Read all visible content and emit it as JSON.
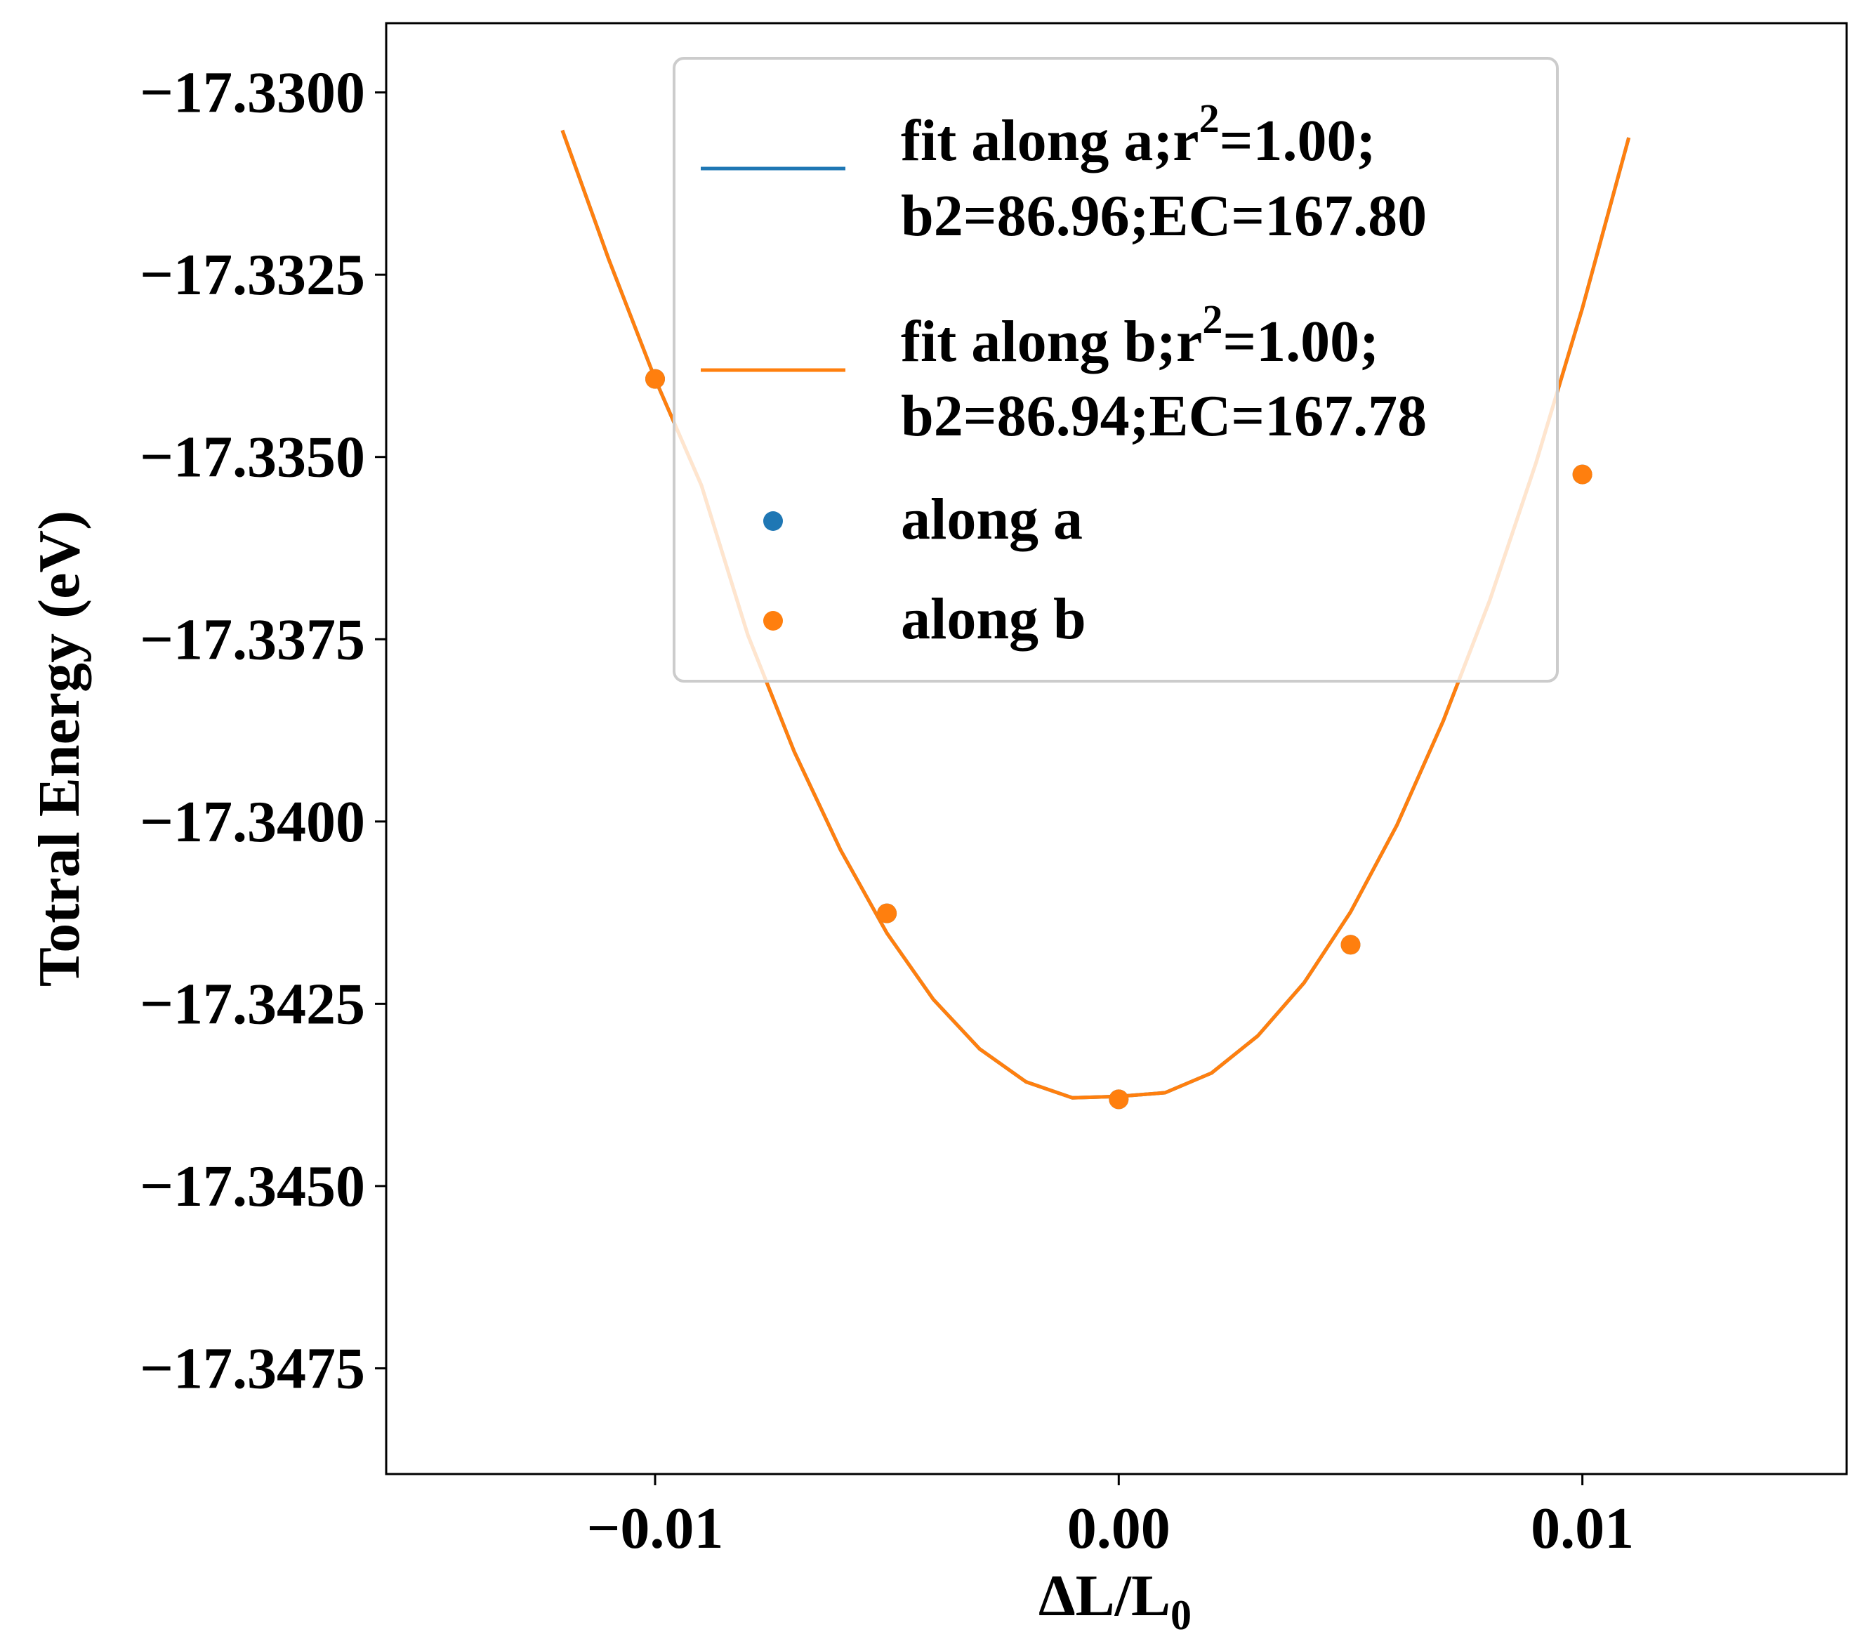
{
  "chart_data": {
    "type": "line",
    "xlabel_main": "ΔL/L",
    "xlabel_sub": "0",
    "ylabel": "Totral Energy (eV)",
    "xlim": [
      -0.0158,
      0.0157
    ],
    "ylim": [
      -17.34895,
      -17.32905
    ],
    "xticks": [
      -0.01,
      0.0,
      0.01
    ],
    "xtick_labels": [
      "−0.01",
      "0.00",
      "0.01"
    ],
    "yticks": [
      -17.33,
      -17.3325,
      -17.335,
      -17.3375,
      -17.34,
      -17.3425,
      -17.345,
      -17.3475
    ],
    "ytick_labels": [
      "−17.3300",
      "−17.3325",
      "−17.3350",
      "−17.3375",
      "−17.3400",
      "−17.3425",
      "−17.3450",
      "−17.3475"
    ],
    "colors": {
      "a": "#1f77b4",
      "b": "#ff7f0e"
    },
    "fit_x": [
      -0.012,
      -0.011,
      -0.01,
      -0.009,
      -0.008,
      -0.007,
      -0.006,
      -0.005,
      -0.004,
      -0.003,
      -0.002,
      -0.001,
      0.0,
      0.001,
      0.002,
      0.003,
      0.004,
      0.005,
      0.006,
      0.007,
      0.008,
      0.009,
      0.01,
      0.011
    ],
    "series": [
      {
        "key": "fit_a",
        "kind": "line",
        "color": "#1f77b4",
        "legend": [
          "fit along a;r",
          "2",
          "=1.00;",
          "b2=86.96;EC=167.80"
        ],
        "y": [
          -17.33052,
          -17.33229,
          -17.33393,
          -17.33539,
          -17.33744,
          -17.33904,
          -17.34039,
          -17.34153,
          -17.34244,
          -17.34312,
          -17.34357,
          -17.34379,
          -17.34377,
          -17.34372,
          -17.34345,
          -17.34294,
          -17.34221,
          -17.34124,
          -17.34005,
          -17.33862,
          -17.33697,
          -17.33508,
          -17.33296,
          -17.33062
        ]
      },
      {
        "key": "fit_b",
        "kind": "line",
        "color": "#ff7f0e",
        "legend": [
          "fit along b;r",
          "2",
          "=1.00;",
          "b2=86.94;EC=167.78"
        ],
        "y": [
          -17.33052,
          -17.33229,
          -17.33393,
          -17.33539,
          -17.33744,
          -17.33904,
          -17.34039,
          -17.34153,
          -17.34244,
          -17.34312,
          -17.34357,
          -17.34379,
          -17.34377,
          -17.34372,
          -17.34345,
          -17.34294,
          -17.34221,
          -17.34124,
          -17.34005,
          -17.33862,
          -17.33697,
          -17.33508,
          -17.33296,
          -17.33062
        ]
      },
      {
        "key": "pts_a",
        "kind": "scatter",
        "color": "#1f77b4",
        "legend_label": "along a",
        "x": [
          -0.01,
          -0.005,
          0.0,
          0.005,
          0.01
        ],
        "y": [
          -17.33393,
          -17.34126,
          -17.34381,
          -17.34169,
          -17.33524
        ]
      },
      {
        "key": "pts_b",
        "kind": "scatter",
        "color": "#ff7f0e",
        "legend_label": "along b",
        "x": [
          -0.01,
          -0.005,
          0.0,
          0.005,
          0.01
        ],
        "y": [
          -17.33393,
          -17.34126,
          -17.34381,
          -17.34169,
          -17.33524
        ]
      }
    ]
  }
}
